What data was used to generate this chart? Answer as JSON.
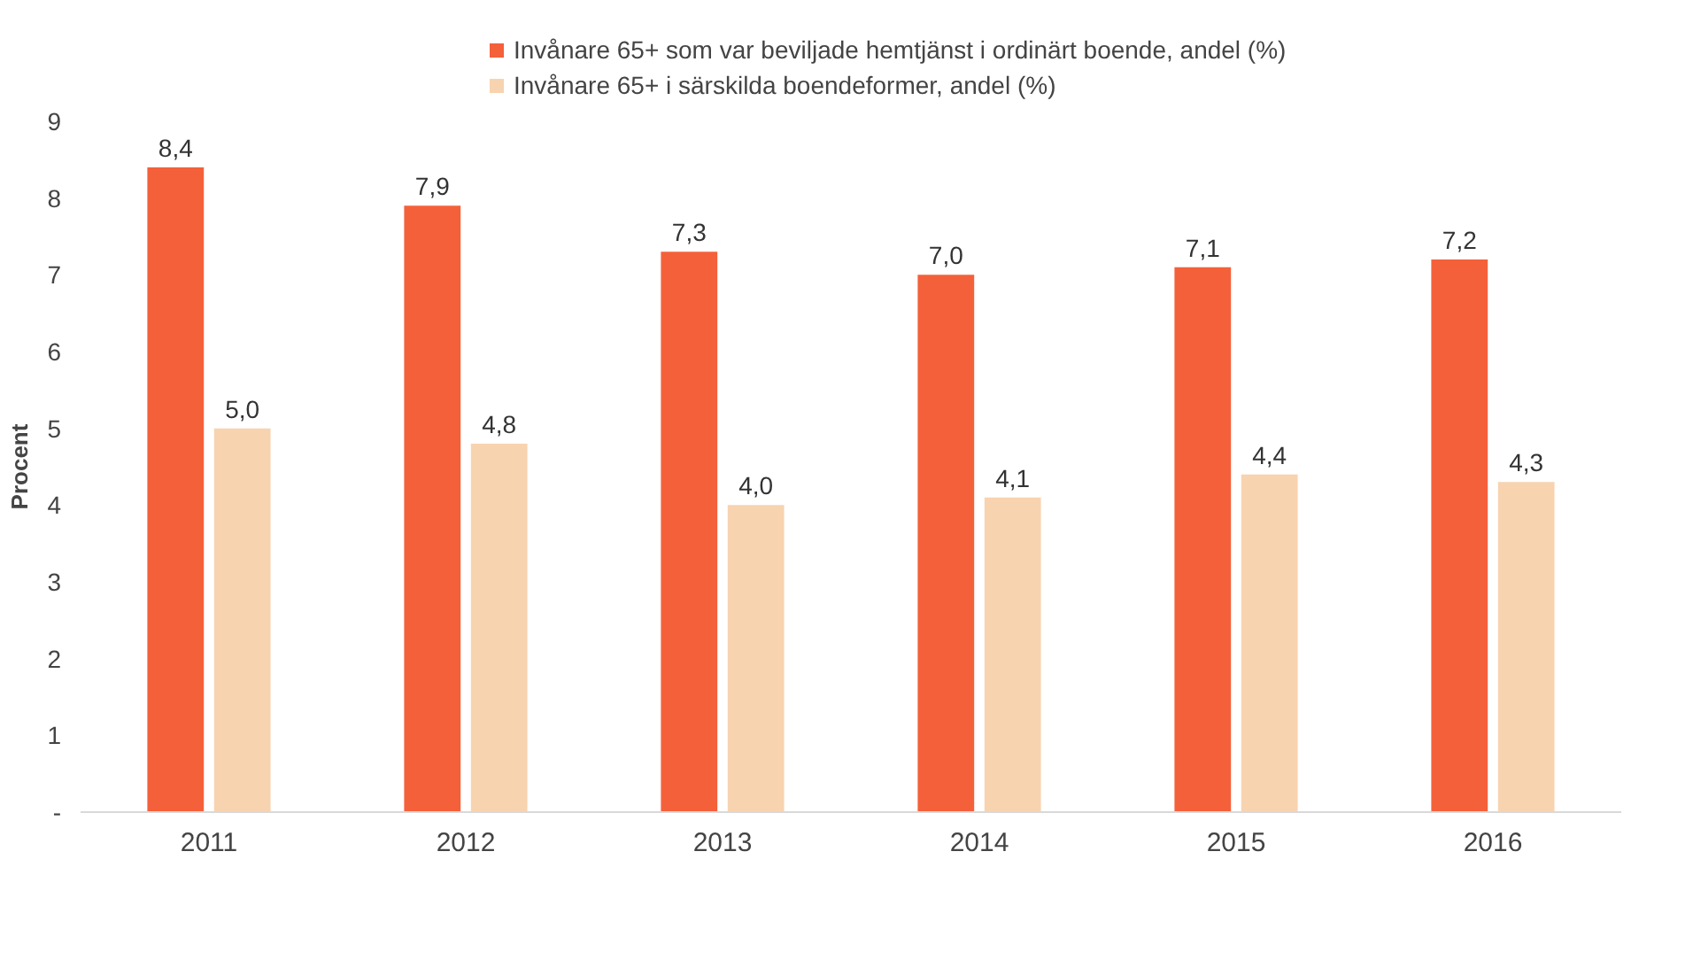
{
  "chart_data": {
    "type": "bar",
    "ylabel": "Procent",
    "categories": [
      "2011",
      "2012",
      "2013",
      "2014",
      "2015",
      "2016"
    ],
    "series": [
      {
        "name": "Invånare 65+ som var beviljade hemtjänst i ordinärt boende, andel (%)",
        "color": "#f4603a",
        "values": [
          8.4,
          7.9,
          7.3,
          7.0,
          7.1,
          7.2
        ],
        "value_labels": [
          "8,4",
          "7,9",
          "7,3",
          "7,0",
          "7,1",
          "7,2"
        ]
      },
      {
        "name": "Invånare 65+ i särskilda boendeformer, andel (%)",
        "color": "#f8d3b0",
        "values": [
          5.0,
          4.8,
          4.0,
          4.1,
          4.4,
          4.3
        ],
        "value_labels": [
          "5,0",
          "4,8",
          "4,0",
          "4,1",
          "4,4",
          "4,3"
        ]
      }
    ],
    "ylim": [
      0,
      9
    ],
    "yticks": [
      {
        "value": 0,
        "label": "-"
      },
      1,
      2,
      3,
      4,
      5,
      6,
      7,
      8,
      9
    ],
    "grid": false,
    "legend": "top"
  }
}
